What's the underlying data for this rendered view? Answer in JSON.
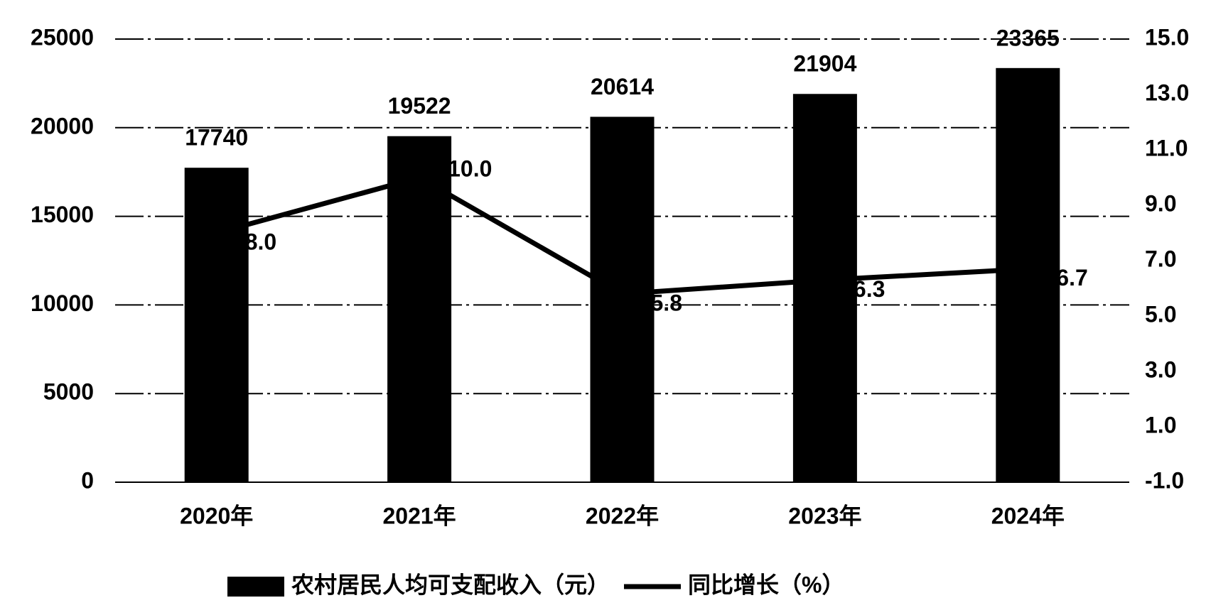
{
  "chart_data": {
    "type": "bar",
    "categories": [
      "2020年",
      "2021年",
      "2022年",
      "2023年",
      "2024年"
    ],
    "series": [
      {
        "name": "农村居民人均可支配收入（元）",
        "type": "bar",
        "color": "#000000",
        "values": [
          17740,
          19522,
          20614,
          21904,
          23365
        ]
      },
      {
        "name": "同比增长（%）",
        "type": "line",
        "axis": "y2",
        "color": "#000000",
        "values": [
          8.0,
          10.0,
          5.8,
          6.3,
          6.7
        ],
        "value_labels": [
          "8.0",
          "10.0",
          "5.8",
          "6.3",
          "6.7"
        ]
      }
    ],
    "ylim": [
      0,
      25000
    ],
    "yticks": [
      0,
      5000,
      10000,
      15000,
      20000,
      25000
    ],
    "y2lim": [
      -1,
      15
    ],
    "y2ticks": [
      {
        "value": -1,
        "label": "-1.0"
      },
      {
        "value": 1,
        "label": "1.0"
      },
      {
        "value": 3,
        "label": "3.0"
      },
      {
        "value": 5,
        "label": "5.0"
      },
      {
        "value": 7,
        "label": "7.0"
      },
      {
        "value": 9,
        "label": "9.0"
      },
      {
        "value": 11,
        "label": "11.0"
      },
      {
        "value": 13,
        "label": "13.0"
      },
      {
        "value": 15,
        "label": "15.0"
      }
    ],
    "grid": true,
    "legend": "bottom"
  }
}
